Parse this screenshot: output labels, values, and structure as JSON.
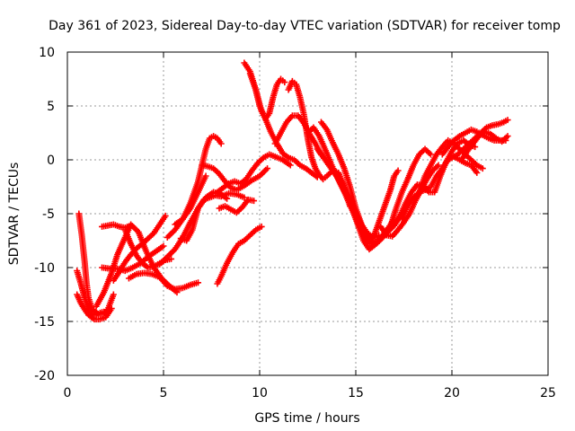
{
  "chart_data": {
    "type": "scatter",
    "title": "Day 361 of 2023, Sidereal Day-to-day VTEC variation (SDTVAR) for receiver tomp",
    "xlabel": "GPS time / hours",
    "ylabel": "SDTVAR / TECUs",
    "xlim": [
      0,
      25
    ],
    "ylim": [
      -20,
      10
    ],
    "x_ticks": [
      "0",
      "5",
      "10",
      "15",
      "20",
      "25"
    ],
    "y_ticks": [
      "-20",
      "-15",
      "-10",
      "-5",
      "0",
      "5",
      "10"
    ],
    "grid": true,
    "marker": "+",
    "color": "#ff0000",
    "series": [
      {
        "x": [
          0.5,
          0.7,
          0.9,
          1.1,
          1.3,
          1.5,
          1.7,
          1.9
        ],
        "y": [
          -10.3,
          -11.5,
          -12.8,
          -13.8,
          -14.3,
          -14.4,
          -14.2,
          -14.1
        ]
      },
      {
        "x": [
          0.6,
          0.75,
          0.9,
          1.0,
          1.1,
          1.3,
          1.6,
          1.9,
          2.1,
          2.4
        ],
        "y": [
          -5.0,
          -7.0,
          -9.5,
          -11.5,
          -12.8,
          -13.9,
          -14.3,
          -14.3,
          -13.9,
          -12.5
        ]
      },
      {
        "x": [
          0.5,
          0.7,
          0.9,
          1.1,
          1.4,
          1.7,
          2.0,
          2.3
        ],
        "y": [
          -12.5,
          -13.3,
          -13.9,
          -14.4,
          -14.8,
          -14.8,
          -14.6,
          -13.8
        ]
      },
      {
        "x": [
          1.5,
          1.9,
          2.3,
          2.6,
          3.0,
          3.3,
          3.7,
          4.1,
          4.5,
          4.9,
          5.3,
          5.7
        ],
        "y": [
          -13.6,
          -12.3,
          -10.5,
          -8.8,
          -7.2,
          -6.0,
          -6.7,
          -8.5,
          -10.0,
          -11.0,
          -11.7,
          -12.3
        ]
      },
      {
        "x": [
          2.4,
          2.7,
          3.0,
          3.3,
          3.6,
          3.9,
          4.2,
          4.5,
          4.8,
          5.1
        ],
        "y": [
          -11.2,
          -10.4,
          -9.5,
          -8.8,
          -8.2,
          -7.8,
          -7.3,
          -6.8,
          -6.0,
          -5.2
        ]
      },
      {
        "x": [
          1.8,
          2.2,
          2.6,
          3.0,
          3.4,
          3.8,
          4.2,
          4.6,
          5.0
        ],
        "y": [
          -10.0,
          -10.1,
          -10.1,
          -10.3,
          -10.0,
          -9.6,
          -9.0,
          -8.5,
          -8.0
        ]
      },
      {
        "x": [
          1.8,
          2.1,
          2.4,
          2.7,
          3.0,
          3.3
        ],
        "y": [
          -6.2,
          -6.1,
          -6.0,
          -6.2,
          -6.3,
          -6.1
        ]
      },
      {
        "x": [
          3.0,
          3.3,
          3.6,
          3.9,
          4.2,
          4.5,
          4.8,
          5.1,
          5.4
        ],
        "y": [
          -6.5,
          -7.8,
          -8.9,
          -9.6,
          -10.0,
          -9.9,
          -9.6,
          -9.3,
          -9.2
        ]
      },
      {
        "x": [
          3.2,
          3.6,
          4.0,
          4.4,
          4.8,
          5.2,
          5.6,
          6.0,
          6.4,
          6.8
        ],
        "y": [
          -11.0,
          -10.6,
          -10.5,
          -10.6,
          -10.9,
          -11.7,
          -12.0,
          -11.9,
          -11.6,
          -11.4
        ]
      },
      {
        "x": [
          4.8,
          5.2,
          5.6,
          6.0,
          6.4,
          6.8,
          7.2,
          7.6,
          8.0,
          8.3
        ],
        "y": [
          -9.7,
          -9.0,
          -8.3,
          -7.2,
          -5.8,
          -4.5,
          -3.5,
          -3.0,
          -3.2,
          -3.6
        ]
      },
      {
        "x": [
          5.2,
          5.6,
          6.0,
          6.4,
          6.8,
          7.0,
          7.2,
          7.4,
          7.6,
          7.8,
          8.0
        ],
        "y": [
          -7.2,
          -6.5,
          -5.5,
          -4.0,
          -2.0,
          -0.5,
          1.0,
          2.0,
          2.2,
          2.0,
          1.5
        ]
      },
      {
        "x": [
          5.6,
          6.0,
          6.4,
          6.8,
          7.2
        ],
        "y": [
          -6.0,
          -5.5,
          -4.5,
          -3.0,
          -1.5
        ]
      },
      {
        "x": [
          5.9,
          6.2,
          6.5,
          6.8,
          7.1,
          7.4,
          7.7,
          8.0,
          8.4,
          8.8,
          9.2
        ],
        "y": [
          -7.3,
          -7.5,
          -6.5,
          -4.5,
          -3.7,
          -3.5,
          -3.3,
          -3.4,
          -3.1,
          -3.2,
          -3.5
        ]
      },
      {
        "x": [
          7.0,
          7.3,
          7.6,
          7.9,
          8.2,
          8.5,
          8.8,
          9.2,
          9.6,
          10.0,
          10.4
        ],
        "y": [
          -0.5,
          -0.6,
          -0.8,
          -1.3,
          -2.0,
          -2.6,
          -2.8,
          -2.4,
          -1.9,
          -1.5,
          -0.8
        ]
      },
      {
        "x": [
          7.8,
          8.1,
          8.4,
          8.7,
          9.0,
          9.3,
          9.6,
          9.9,
          10.2,
          10.5,
          10.8,
          11.2,
          11.6
        ],
        "y": [
          -3.0,
          -2.6,
          -2.2,
          -2.0,
          -2.2,
          -1.8,
          -1.0,
          -0.3,
          0.2,
          0.5,
          0.3,
          0.0,
          -0.5
        ]
      },
      {
        "x": [
          7.8,
          8.0,
          8.3,
          8.6,
          8.9,
          9.2,
          9.5,
          9.8,
          10.1
        ],
        "y": [
          -11.5,
          -10.8,
          -9.6,
          -8.6,
          -7.8,
          -7.5,
          -7.0,
          -6.5,
          -6.2
        ]
      },
      {
        "x": [
          7.9,
          8.2,
          8.5,
          8.8,
          9.1,
          9.4,
          9.7
        ],
        "y": [
          -4.5,
          -4.3,
          -4.6,
          -4.9,
          -4.4,
          -3.7,
          -3.8
        ]
      },
      {
        "x": [
          9.2,
          9.5,
          9.8,
          10.1,
          10.3,
          10.5,
          10.7,
          10.9,
          11.1,
          11.3
        ],
        "y": [
          9.0,
          8.2,
          6.5,
          4.5,
          3.8,
          4.3,
          5.8,
          7.0,
          7.5,
          7.2
        ]
      },
      {
        "x": [
          9.5,
          9.8,
          10.0,
          10.3,
          10.6,
          10.9,
          11.2,
          11.5,
          11.8,
          12.1,
          12.4,
          12.7,
          13.0
        ],
        "y": [
          8.0,
          6.5,
          5.0,
          3.8,
          2.5,
          1.5,
          0.6,
          0.2,
          0.0,
          -0.5,
          -0.8,
          -1.2,
          -1.6
        ]
      },
      {
        "x": [
          10.8,
          11.1,
          11.4,
          11.7,
          12.0,
          12.3,
          12.6,
          12.9,
          13.2
        ],
        "y": [
          1.5,
          2.5,
          3.5,
          4.1,
          4.1,
          3.4,
          2.4,
          1.5,
          0.5
        ]
      },
      {
        "x": [
          11.5,
          11.7,
          11.9,
          12.1,
          12.3,
          12.5,
          12.7,
          12.9,
          13.1,
          13.3,
          13.5,
          13.8,
          14.1,
          14.4,
          14.7
        ],
        "y": [
          6.5,
          7.3,
          7.0,
          5.8,
          4.2,
          2.0,
          0.2,
          -0.8,
          -1.4,
          -1.8,
          -1.5,
          -1.0,
          -1.2,
          -2.5,
          -4.3
        ]
      },
      {
        "x": [
          12.5,
          12.8,
          13.1,
          13.4,
          13.7,
          14.0,
          14.3,
          14.6,
          14.9,
          15.2,
          15.5,
          15.8
        ],
        "y": [
          2.5,
          3.0,
          2.2,
          1.0,
          -0.3,
          -1.5,
          -2.5,
          -3.8,
          -5.0,
          -6.2,
          -7.0,
          -7.3
        ]
      },
      {
        "x": [
          13.0,
          13.4,
          13.8,
          14.2,
          14.5,
          14.8,
          15.1,
          15.4,
          15.7
        ],
        "y": [
          1.0,
          0.0,
          -1.0,
          -2.0,
          -3.0,
          -4.0,
          -5.3,
          -6.4,
          -7.5
        ]
      },
      {
        "x": [
          13.2,
          13.5,
          13.8,
          14.1,
          14.4,
          14.7,
          15.0,
          15.3,
          15.6,
          15.9,
          16.2
        ],
        "y": [
          3.5,
          2.8,
          1.6,
          0.5,
          -0.8,
          -2.5,
          -4.5,
          -6.0,
          -6.8,
          -7.2,
          -7.0
        ]
      },
      {
        "x": [
          14.0,
          14.3,
          14.6,
          14.9,
          15.2,
          15.5,
          15.8,
          16.1,
          16.4,
          16.7,
          17.0
        ],
        "y": [
          -1.5,
          -2.6,
          -3.6,
          -4.5,
          -5.8,
          -7.3,
          -7.8,
          -7.5,
          -7.0,
          -6.3,
          -5.5
        ]
      },
      {
        "x": [
          14.3,
          14.6,
          14.9,
          15.2,
          15.4,
          15.7,
          16.0,
          16.3,
          16.6,
          17.0,
          17.4,
          17.8
        ],
        "y": [
          -2.0,
          -3.4,
          -5.0,
          -6.5,
          -7.5,
          -8.3,
          -7.9,
          -7.4,
          -6.8,
          -6.1,
          -5.0,
          -4.0
        ]
      },
      {
        "x": [
          15.8,
          16.0,
          16.2,
          16.4,
          16.6,
          16.8,
          17.0,
          17.2
        ],
        "y": [
          -7.5,
          -6.8,
          -5.8,
          -4.8,
          -3.8,
          -2.8,
          -1.5,
          -1.0
        ]
      },
      {
        "x": [
          16.3,
          16.6,
          16.9,
          17.2,
          17.5,
          17.8,
          18.1,
          18.4,
          18.7,
          19.0,
          19.3
        ],
        "y": [
          -6.2,
          -7.0,
          -7.1,
          -6.5,
          -5.8,
          -5.0,
          -3.8,
          -2.8,
          -1.8,
          -1.0,
          -0.5
        ]
      },
      {
        "x": [
          16.5,
          16.8,
          17.1,
          17.4,
          17.7,
          18.0,
          18.3,
          18.6,
          18.9
        ],
        "y": [
          -7.0,
          -6.2,
          -4.5,
          -3.0,
          -1.8,
          -0.5,
          0.5,
          1.0,
          0.5
        ]
      },
      {
        "x": [
          17.0,
          17.3,
          17.6,
          17.9,
          18.2,
          18.5,
          18.8,
          19.1,
          19.4,
          19.7,
          20.0,
          20.3,
          20.6,
          20.9,
          21.2
        ],
        "y": [
          -6.0,
          -5.2,
          -4.0,
          -3.0,
          -2.3,
          -2.4,
          -3.0,
          -3.0,
          -1.5,
          -0.2,
          0.8,
          1.5,
          1.8,
          1.4,
          1.2
        ]
      },
      {
        "x": [
          17.4,
          17.7,
          18.0,
          18.3,
          18.6,
          18.9,
          19.2,
          19.5,
          19.8,
          20.1,
          20.4,
          20.7,
          21.0,
          21.3
        ],
        "y": [
          -5.5,
          -4.3,
          -3.5,
          -3.0,
          -2.8,
          -2.5,
          -1.5,
          -0.8,
          0.0,
          0.3,
          0.0,
          -0.3,
          -0.5,
          -1.2
        ]
      },
      {
        "x": [
          18.3,
          18.6,
          18.9,
          19.2,
          19.5,
          19.8,
          20.1,
          20.4,
          20.7,
          21.0,
          21.3,
          21.6
        ],
        "y": [
          -3.0,
          -1.5,
          -0.5,
          0.5,
          1.2,
          1.8,
          1.5,
          1.0,
          0.5,
          0.0,
          -0.5,
          -0.8
        ]
      },
      {
        "x": [
          19.5,
          19.8,
          20.1,
          20.4,
          20.7,
          21.0,
          21.3,
          21.6,
          21.9,
          22.2,
          22.5,
          22.8
        ],
        "y": [
          0.5,
          1.2,
          1.8,
          2.2,
          2.5,
          2.8,
          2.6,
          2.3,
          2.0,
          1.8,
          1.8,
          1.8
        ]
      },
      {
        "x": [
          20.0,
          20.3,
          20.6,
          20.9,
          21.2,
          21.5,
          21.8,
          22.1,
          22.4,
          22.7,
          22.9
        ],
        "y": [
          0.2,
          0.5,
          1.0,
          1.5,
          2.0,
          2.5,
          3.0,
          3.2,
          3.3,
          3.5,
          3.7
        ]
      },
      {
        "x": [
          20.5,
          20.8,
          21.1,
          21.4,
          21.7,
          22.0,
          22.3,
          22.6,
          22.9
        ],
        "y": [
          0.0,
          0.8,
          1.5,
          2.2,
          2.6,
          2.4,
          2.0,
          1.7,
          2.2
        ]
      }
    ]
  }
}
